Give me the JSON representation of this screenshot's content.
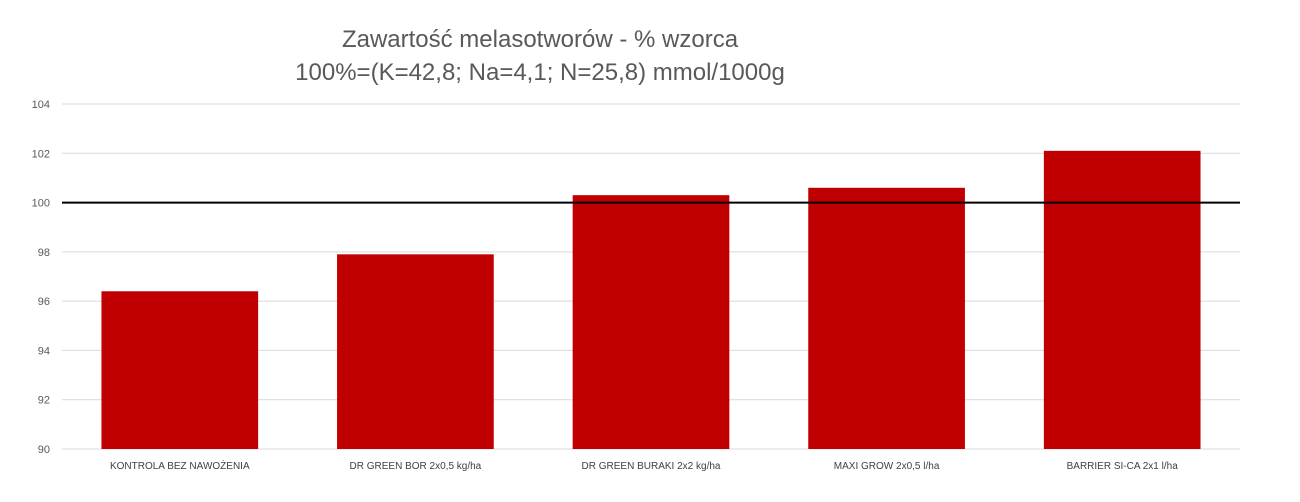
{
  "chart_data": {
    "type": "bar",
    "title": "Zawartość melasotworów - % wzorca",
    "subtitle": "100%=(K=42,8; Na=4,1; N=25,8) mmol/1000g",
    "categories": [
      "KONTROLA BEZ NAWOŻENIA",
      "DR GREEN BOR 2x0,5  kg/ha",
      "DR GREEN BURAKI 2x2  kg/ha",
      "MAXI GROW 2x0,5  l/ha",
      "BARRIER SI-CA 2x1  l/ha"
    ],
    "values": [
      96.4,
      97.9,
      100.3,
      100.6,
      102.1
    ],
    "ylim": [
      90,
      104
    ],
    "yticks": [
      90,
      92,
      94,
      96,
      98,
      100,
      102,
      104
    ],
    "reference_line": 100,
    "grid": true,
    "xlabel": "",
    "ylabel": "",
    "colors": {
      "bar": "#C00000",
      "grid": "#D9D9D9",
      "reference": "#000000"
    }
  }
}
